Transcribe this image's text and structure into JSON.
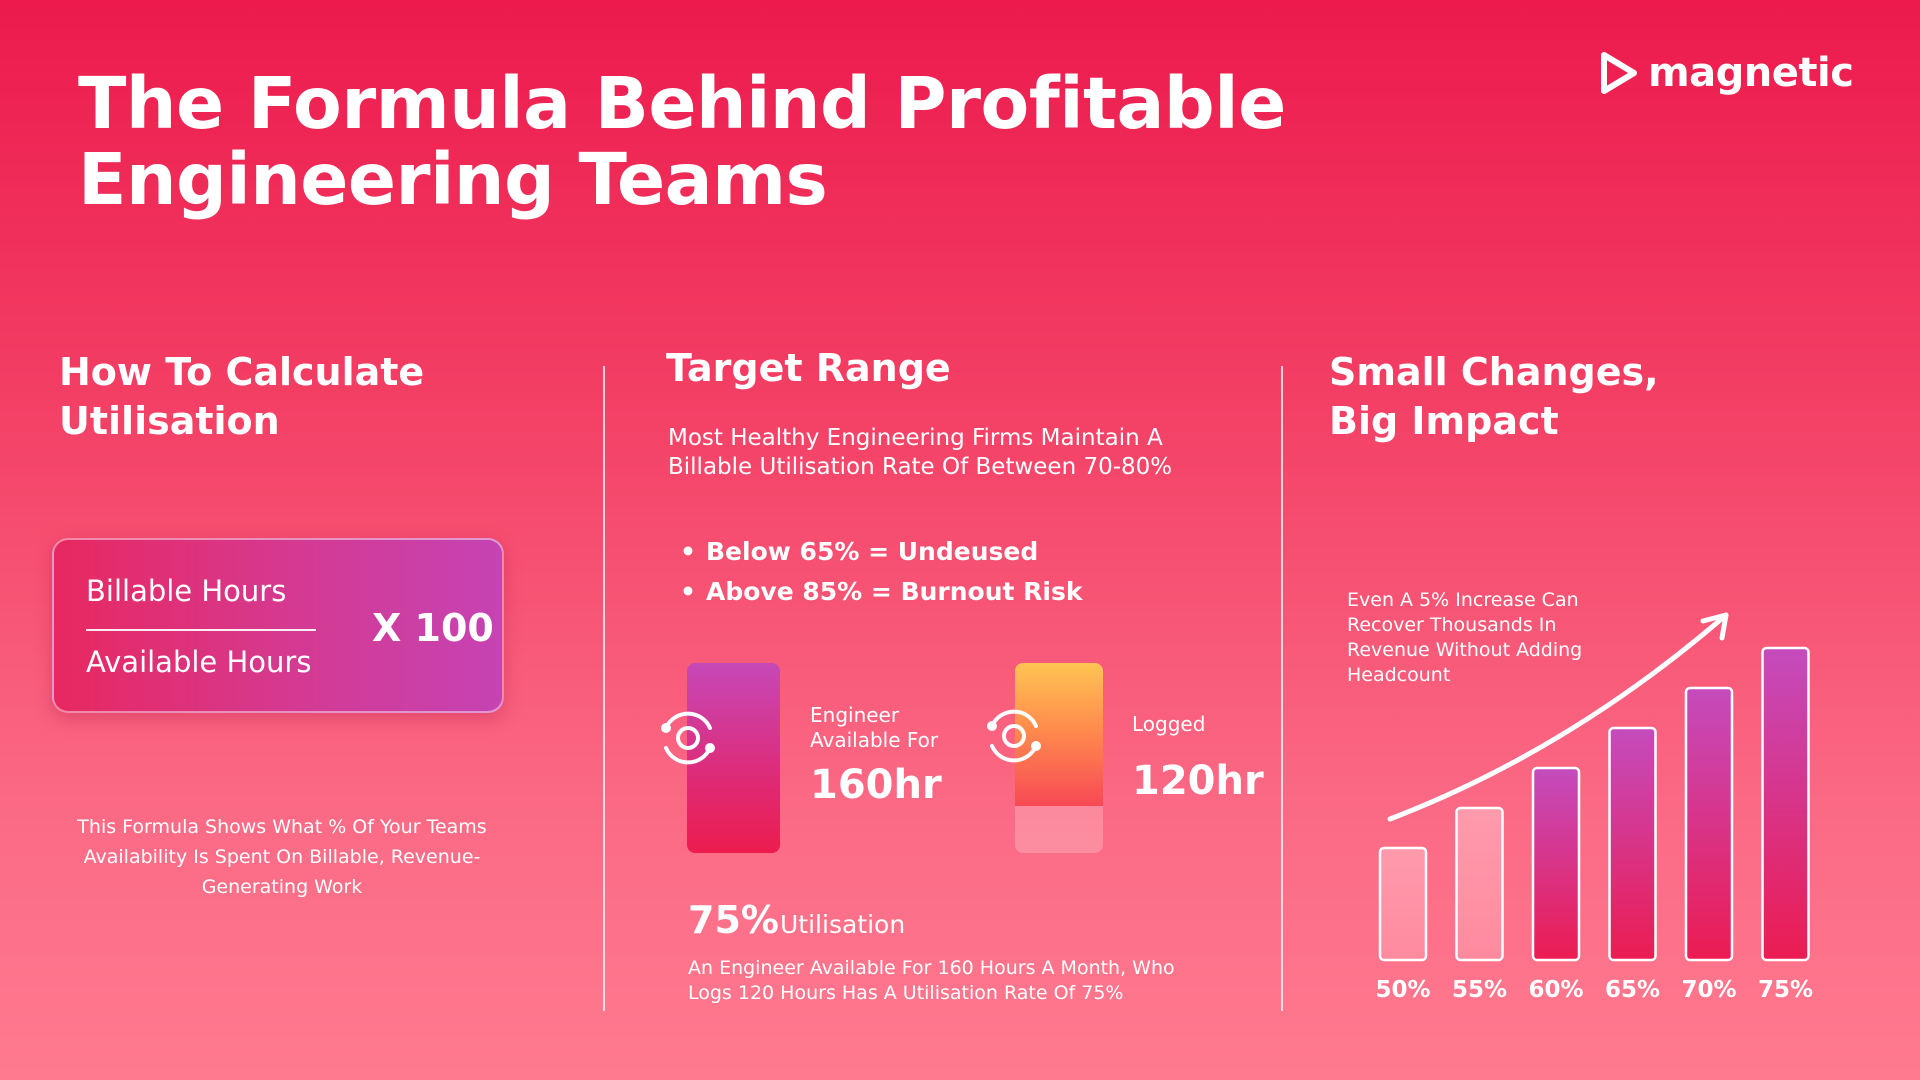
{
  "header": {
    "title_line1": "The Formula Behind Profitable",
    "title_line2": "Engineering Teams",
    "logo_text": "magnetic",
    "logo_icon": "play-triangle-icon"
  },
  "calculate": {
    "title_line1": "How To Calculate",
    "title_line2": "Utilisation",
    "numerator": "Billable Hours",
    "denominator": "Available Hours",
    "multiplier": "X 100",
    "note": "This Formula Shows What % Of Your Teams Availability Is Spent On Billable, Revenue-Generating Work"
  },
  "target": {
    "title": "Target Range",
    "desc_line1": "Most Healthy Engineering Firms Maintain A",
    "desc_line2": "Billable Utilisation Rate Of  Between 70-80%",
    "bullets": [
      "Below 65% = Undeused",
      "Above 85% = Burnout Risk"
    ],
    "available": {
      "label_line1": "Engineer",
      "label_line2": "Available For",
      "value": "160hr",
      "hours": 160,
      "icon": "refresh-cycle-icon"
    },
    "logged": {
      "label": "Logged",
      "value": "120hr",
      "hours": 120,
      "icon": "refresh-cycle-icon"
    },
    "utilisation_pct": "75%",
    "utilisation_word": "Utilisation",
    "note_line1": "An Engineer Available For 160 Hours A Month, Who",
    "note_line2": "Logs 120 Hours Has A Utilisation Rate Of 75%"
  },
  "impact": {
    "title_line1": "Small Changes,",
    "title_line2": "Big Impact",
    "note_line1": "Even A 5% Increase Can",
    "note_line2": "Recover Thousands In",
    "note_line3": "Revenue Without Adding",
    "note_line4": "Headcount",
    "arrow_icon": "trend-up-arrow-icon"
  },
  "chart_data": {
    "type": "bar",
    "categories": [
      "50%",
      "55%",
      "60%",
      "65%",
      "70%",
      "75%"
    ],
    "values": [
      50,
      55,
      60,
      65,
      70,
      75
    ],
    "title": "",
    "xlabel": "",
    "ylabel": "",
    "grid": false,
    "colors": {
      "light": "#ff95a8",
      "dark_top": "#c44bbd",
      "dark_bottom": "#ec1c52"
    }
  }
}
